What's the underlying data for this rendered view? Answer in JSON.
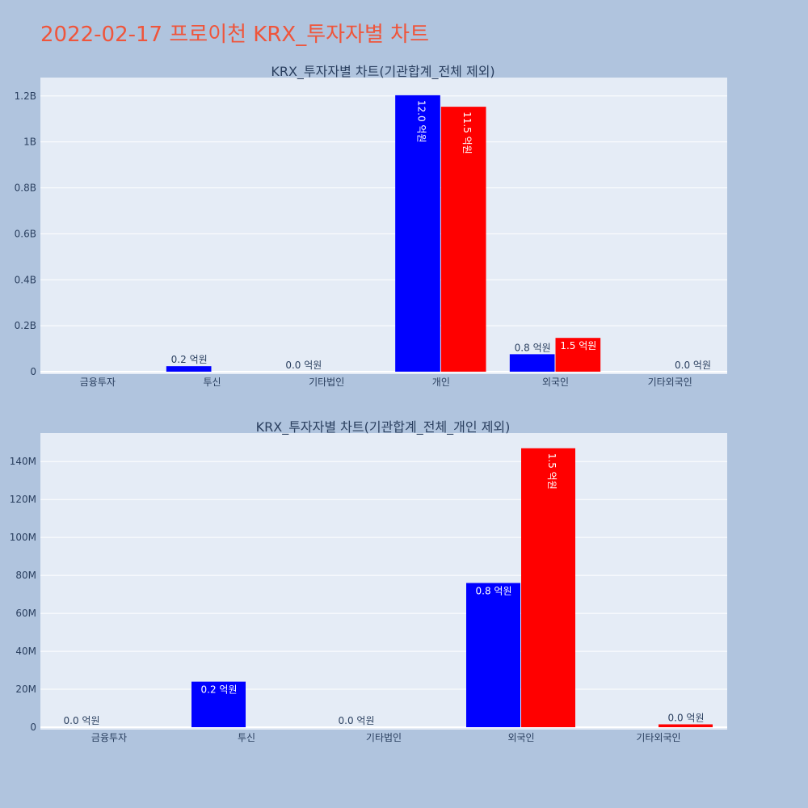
{
  "page": {
    "title": "2022-02-17 프로이천 KRX_투자자별 차트"
  },
  "colors": {
    "background": "#b0c4de",
    "plot_bg": "#e5ecf6",
    "title": "#ef553b",
    "series_a": "#0000ff",
    "series_b": "#ff0000",
    "text": "#2a3f5f"
  },
  "chart_data": [
    {
      "type": "bar",
      "title": "KRX_투자자별 차트(기관합계_전체 제외)",
      "categories": [
        "금융투자",
        "투신",
        "기타법인",
        "개인",
        "외국인",
        "기타외국인"
      ],
      "ylim": [
        0,
        1280000000
      ],
      "yticks": [
        0,
        200000000,
        400000000,
        600000000,
        800000000,
        1000000000,
        1200000000
      ],
      "ytick_labels": [
        "0",
        "0.2B",
        "0.4B",
        "0.6B",
        "0.8B",
        "1B",
        "1.2B"
      ],
      "grid": true,
      "series": [
        {
          "color": "#0000ff",
          "values": [
            0,
            24000000,
            0,
            1203000000,
            76000000,
            0
          ],
          "labels": [
            "",
            "0.2 억원",
            "0.0 억원",
            "12.0 억원",
            "0.8 억원",
            ""
          ]
        },
        {
          "color": "#ff0000",
          "values": [
            0,
            0,
            0,
            1153000000,
            147000000,
            0
          ],
          "labels": [
            "",
            "",
            "",
            "11.5 억원",
            "1.5 억원",
            "0.0 억원"
          ]
        }
      ]
    },
    {
      "type": "bar",
      "title": "KRX_투자자별 차트(기관합계_전체_개인 제외)",
      "categories": [
        "금융투자",
        "투신",
        "기타법인",
        "외국인",
        "기타외국인"
      ],
      "ylim": [
        0,
        155000000
      ],
      "yticks": [
        0,
        20000000,
        40000000,
        60000000,
        80000000,
        100000000,
        120000000,
        140000000
      ],
      "ytick_labels": [
        "0",
        "20M",
        "40M",
        "60M",
        "80M",
        "100M",
        "120M",
        "140M"
      ],
      "grid": true,
      "series": [
        {
          "color": "#0000ff",
          "values": [
            0,
            24000000,
            0,
            76000000,
            0
          ],
          "labels": [
            "0.0 억원",
            "0.2 억원",
            "0.0 억원",
            "0.8 억원",
            ""
          ]
        },
        {
          "color": "#ff0000",
          "values": [
            0,
            0,
            0,
            147000000,
            1500000
          ],
          "labels": [
            "",
            "",
            "",
            "1.5 억원",
            "0.0 억원"
          ]
        }
      ]
    }
  ]
}
